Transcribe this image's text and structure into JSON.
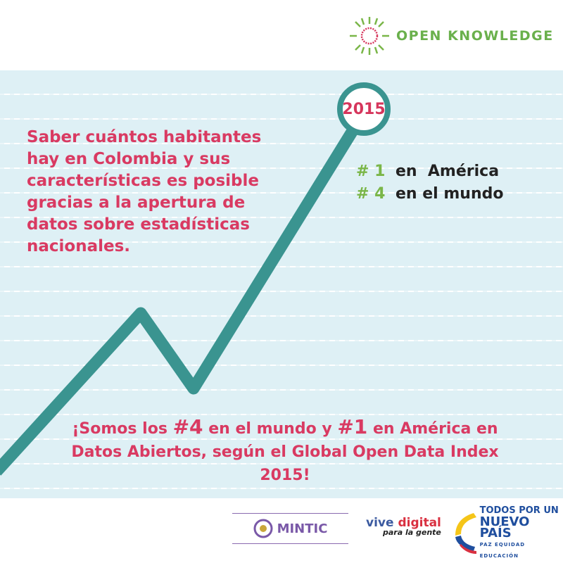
{
  "header": {
    "brand": "OPEN KNOWLEDGE"
  },
  "main": {
    "lead_text": "Saber cuántos habitantes hay en Colombia y sus características es posible gracias a la apertura de datos sobre estadísticas nacionales.",
    "year_badge": "2015",
    "rankings": [
      {
        "rank": "# 1",
        "label": "en  América"
      },
      {
        "rank": "# 4",
        "label": "en el mundo"
      }
    ],
    "bottom": {
      "p1": "¡Somos los ",
      "h1": "#4",
      "p2": " en el mundo y ",
      "h2": "#1",
      "p3": " en América en Datos Abiertos, según el Global Open Data Index 2015!"
    }
  },
  "footer": {
    "mintic": "MINTIC",
    "vive_a": "vive",
    "vive_b": "digital",
    "vive_c": "para la gente",
    "todos_1": "TODOS POR UN",
    "todos_2": "NUEVO PAÍS",
    "todos_3": "PAZ  EQUIDAD  EDUCACIÓN"
  },
  "colors": {
    "accent": "#d93a62",
    "line": "#3a9490",
    "green": "#7ab648",
    "panel": "#def0f5"
  }
}
